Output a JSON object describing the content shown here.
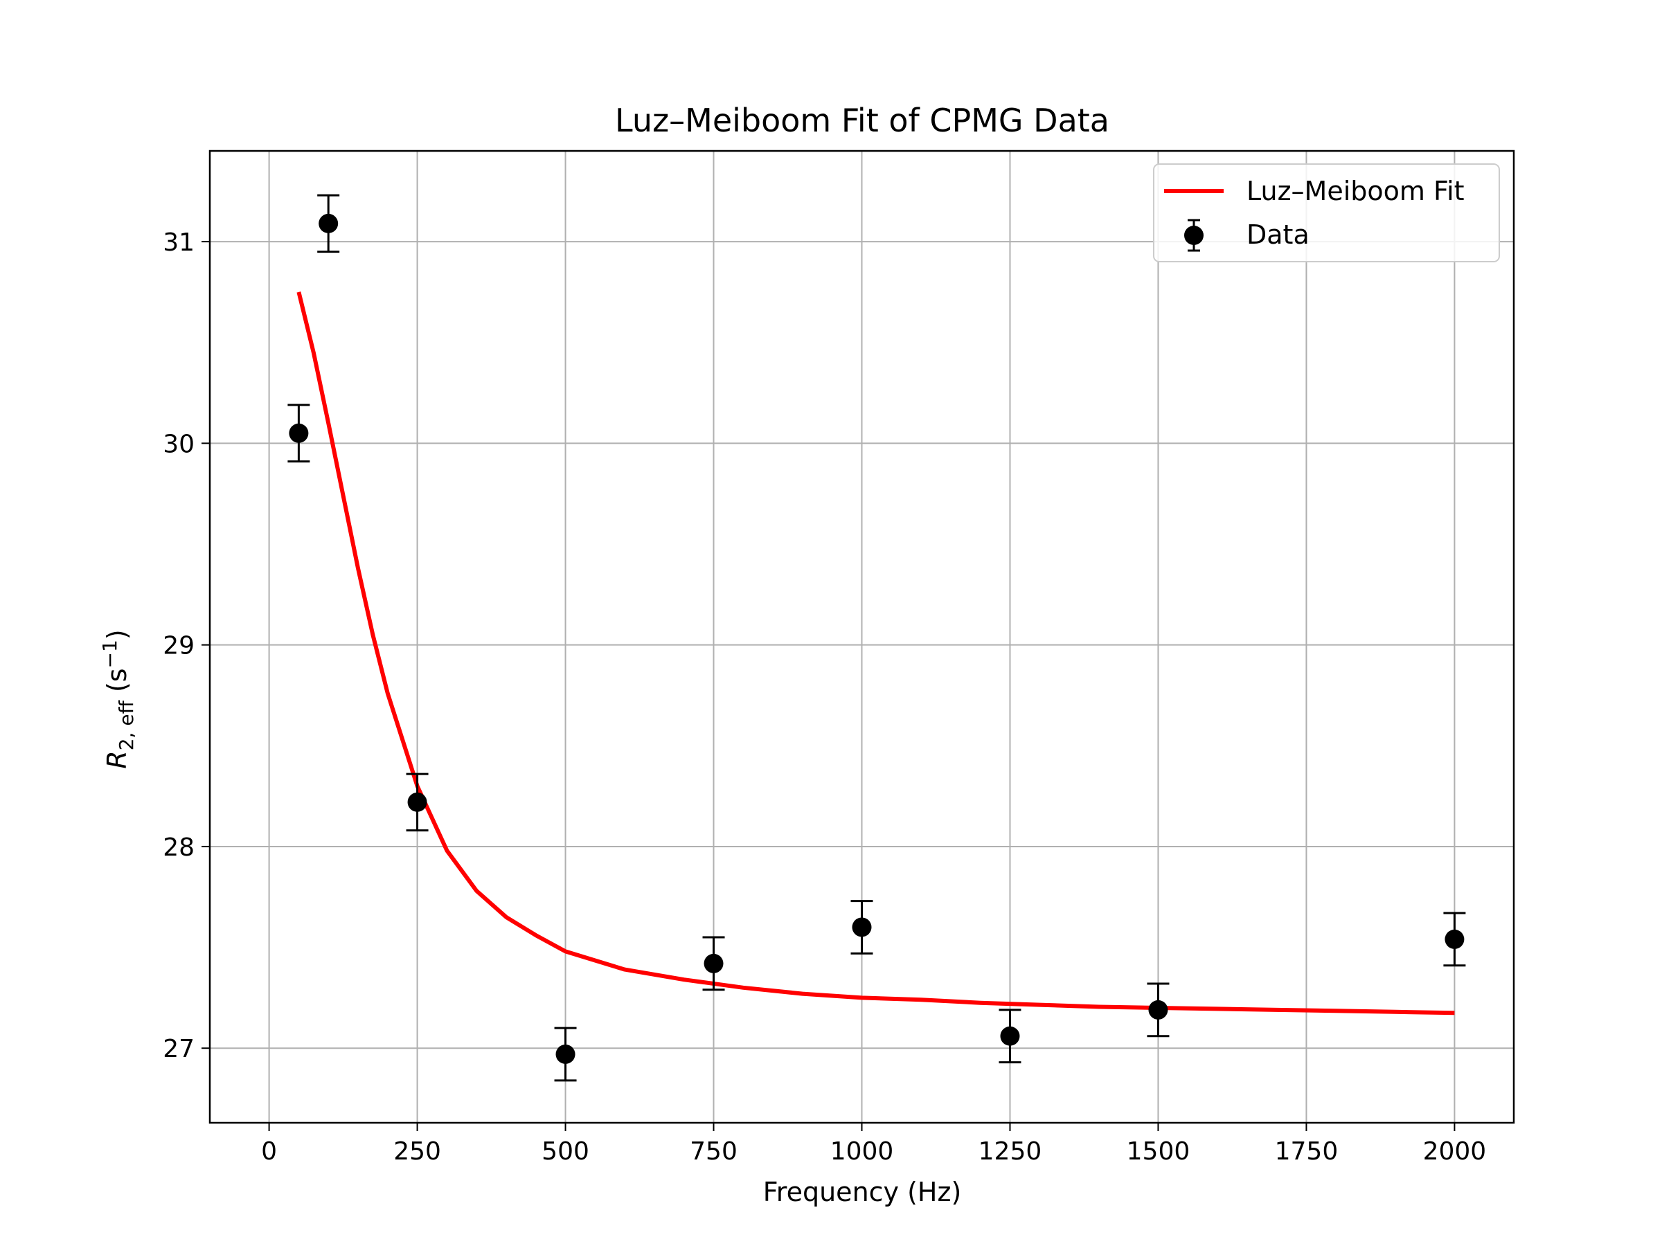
{
  "chart_data": {
    "type": "scatter",
    "title": "Luz–Meiboom Fit of CPMG Data",
    "xlabel": "Frequency (Hz)",
    "ylabel": {
      "symbol": "R",
      "subscript": "2, eff",
      "unit_open": " (s",
      "unit_sup": "−1",
      "unit_close": ")"
    },
    "xlim": [
      -100,
      2100
    ],
    "ylim": [
      26.63,
      31.45
    ],
    "xticks": [
      0,
      250,
      500,
      750,
      1000,
      1250,
      1500,
      1750,
      2000
    ],
    "yticks": [
      27,
      28,
      29,
      30,
      31
    ],
    "grid": true,
    "legend_position": "upper right",
    "legend": [
      "Luz–Meiboom Fit",
      "Data"
    ],
    "colors": {
      "fit": "#ff0000",
      "data": "#000000",
      "grid": "#b0b0b0"
    },
    "series": [
      {
        "name": "Data",
        "kind": "errorbar",
        "x": [
          50,
          100,
          250,
          500,
          750,
          1000,
          1250,
          1500,
          2000
        ],
        "y": [
          30.05,
          31.09,
          28.22,
          26.97,
          27.42,
          27.6,
          27.06,
          27.19,
          27.54
        ],
        "yerr": [
          0.14,
          0.14,
          0.14,
          0.13,
          0.13,
          0.13,
          0.13,
          0.13,
          0.13
        ]
      },
      {
        "name": "Luz–Meiboom Fit",
        "kind": "line",
        "x": [
          50,
          75,
          100,
          125,
          150,
          175,
          200,
          250,
          300,
          350,
          400,
          450,
          500,
          600,
          700,
          800,
          900,
          1000,
          1100,
          1200,
          1300,
          1400,
          1500,
          1600,
          1700,
          1800,
          1900,
          2000
        ],
        "y": [
          30.75,
          30.45,
          30.1,
          29.74,
          29.38,
          29.05,
          28.76,
          28.3,
          27.98,
          27.78,
          27.65,
          27.56,
          27.48,
          27.39,
          27.34,
          27.3,
          27.27,
          27.25,
          27.24,
          27.225,
          27.215,
          27.205,
          27.2,
          27.195,
          27.19,
          27.185,
          27.18,
          27.175
        ]
      }
    ]
  }
}
